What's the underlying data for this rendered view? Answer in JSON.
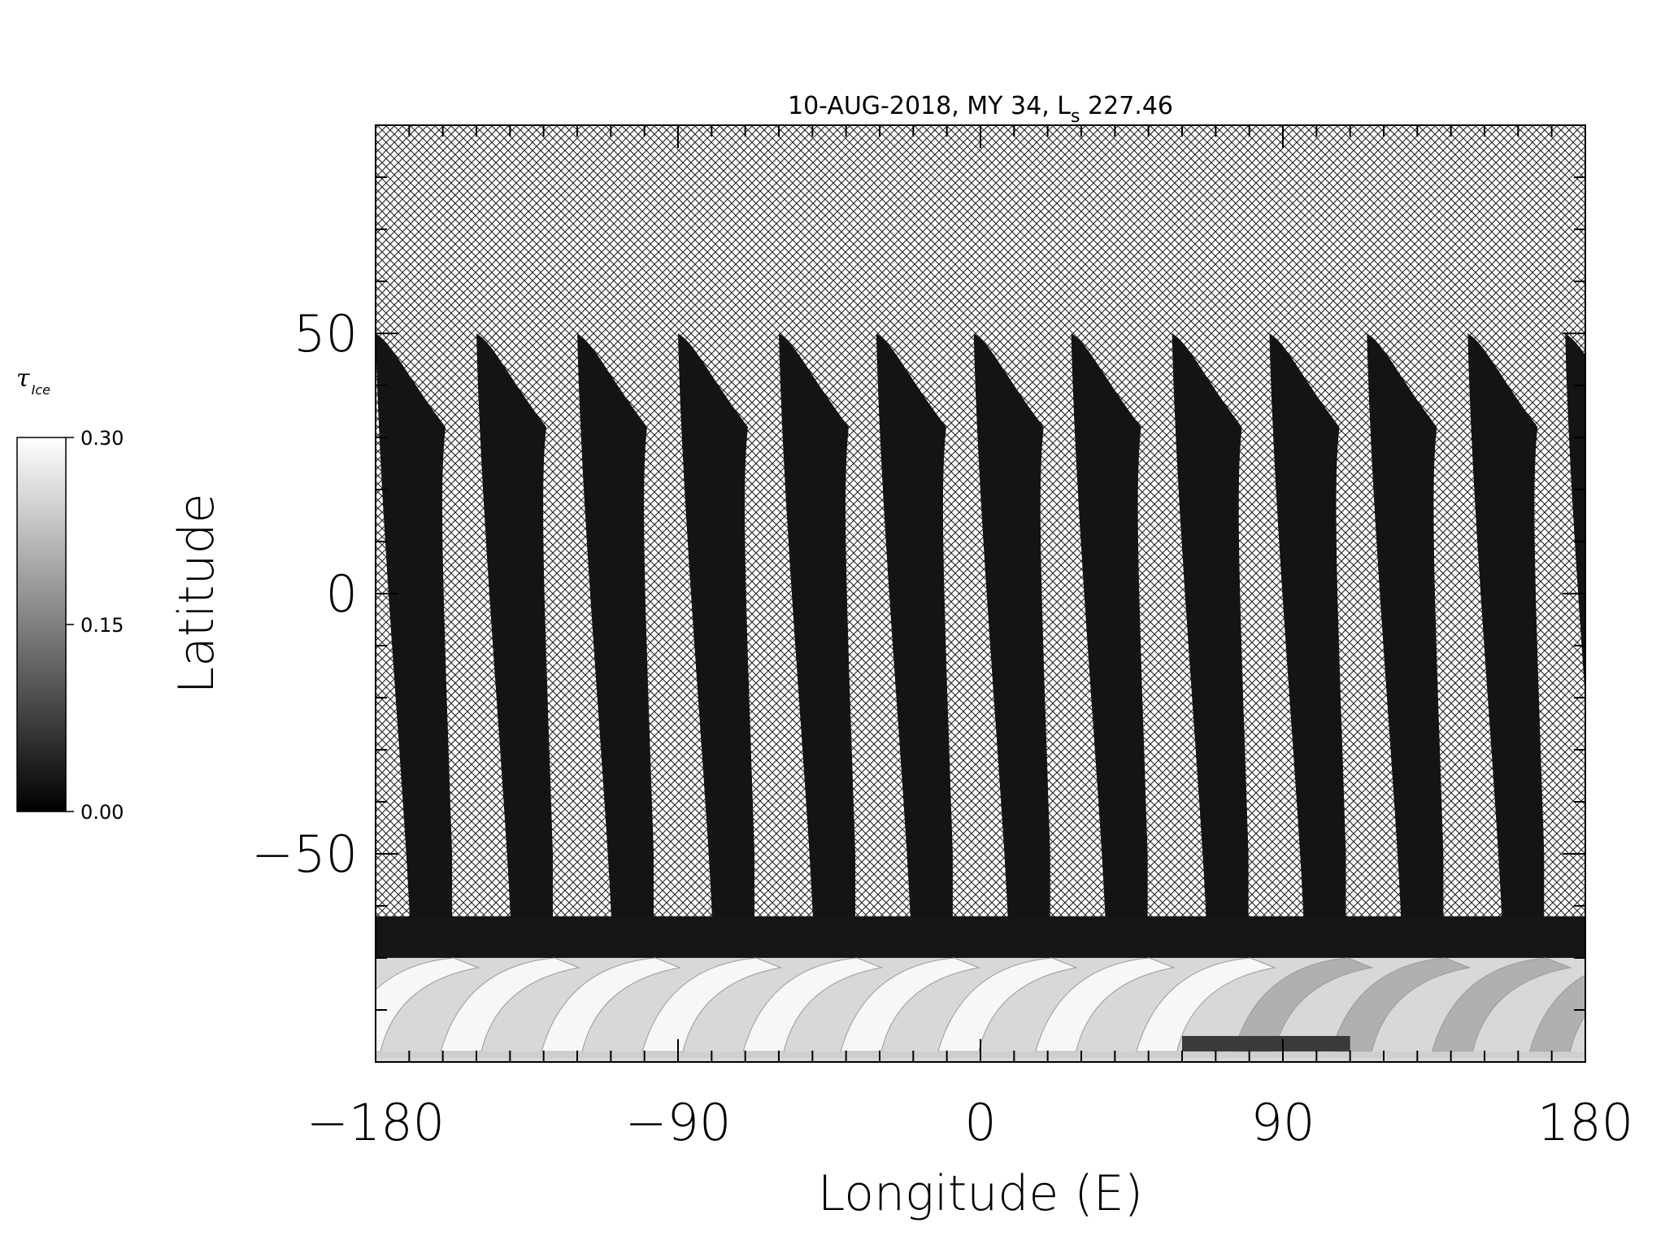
{
  "chart_data": {
    "type": "heatmap",
    "title": "10-AUG-2018, MY 34,  L",
    "title_subscript": "s",
    "title_value": " 227.46",
    "xlabel": "Longitude (E)",
    "ylabel": "Latitude",
    "xlim": [
      -180,
      180
    ],
    "ylim": [
      -90,
      90
    ],
    "xticks": [
      -180,
      -90,
      0,
      90,
      180
    ],
    "xtick_labels": [
      "−180",
      "−90",
      "0",
      "90",
      "180"
    ],
    "yticks": [
      -50,
      0,
      50
    ],
    "ytick_labels": [
      "−50",
      "0",
      "50"
    ],
    "grid": false,
    "colormap": "grayscale",
    "missing_data": "cross-hatched",
    "colorbar": {
      "title": "τ",
      "title_subscript": "Ice",
      "min": 0.0,
      "max": 0.3,
      "ticks": [
        0.0,
        0.15,
        0.3
      ],
      "tick_labels": [
        "0.00",
        "0.15",
        "0.30"
      ],
      "placement": "left"
    },
    "swaths": [
      {
        "lon_top": -180,
        "lon_bottom": -167
      },
      {
        "lon_top": -150,
        "lon_bottom": -137
      },
      {
        "lon_top": -120,
        "lon_bottom": -107
      },
      {
        "lon_top": -90,
        "lon_bottom": -77
      },
      {
        "lon_top": -60,
        "lon_bottom": -47
      },
      {
        "lon_top": -31,
        "lon_bottom": -18
      },
      {
        "lon_top": -2,
        "lon_bottom": 11
      },
      {
        "lon_top": 27,
        "lon_bottom": 40
      },
      {
        "lon_top": 57,
        "lon_bottom": 70
      },
      {
        "lon_top": 86,
        "lon_bottom": 99
      },
      {
        "lon_top": 115,
        "lon_bottom": 128
      },
      {
        "lon_top": 145,
        "lon_bottom": 158
      },
      {
        "lon_top": 174,
        "lon_bottom": 187
      }
    ],
    "swath_lat_top": 50,
    "swath_lat_bottom": -70,
    "polar_band_lat": [
      -70,
      -88
    ]
  }
}
